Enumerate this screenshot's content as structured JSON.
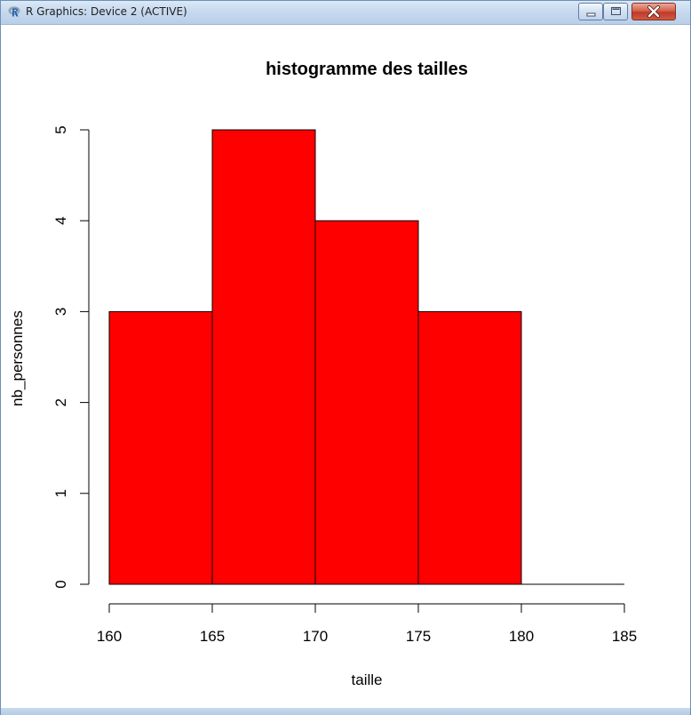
{
  "window": {
    "title": "R Graphics: Device 2 (ACTIVE)",
    "icon": "r-logo-icon",
    "controls": [
      "minimize-icon",
      "maximize-icon",
      "close-icon"
    ]
  },
  "chart_data": {
    "type": "bar",
    "title": "histogramme des tailles",
    "xlabel": "taille",
    "ylabel": "nb_personnes",
    "bins": [
      {
        "from": 160,
        "to": 165,
        "count": 3
      },
      {
        "from": 165,
        "to": 170,
        "count": 5
      },
      {
        "from": 170,
        "to": 175,
        "count": 4
      },
      {
        "from": 175,
        "to": 180,
        "count": 3
      },
      {
        "from": 180,
        "to": 185,
        "count": 0
      }
    ],
    "xlim": [
      160,
      185
    ],
    "ylim": [
      0,
      5
    ],
    "x_ticks": [
      "160",
      "165",
      "170",
      "175",
      "180",
      "185"
    ],
    "y_ticks": [
      "0",
      "1",
      "2",
      "3",
      "4",
      "5"
    ],
    "bar_color": "#ff0000",
    "grid": false
  }
}
